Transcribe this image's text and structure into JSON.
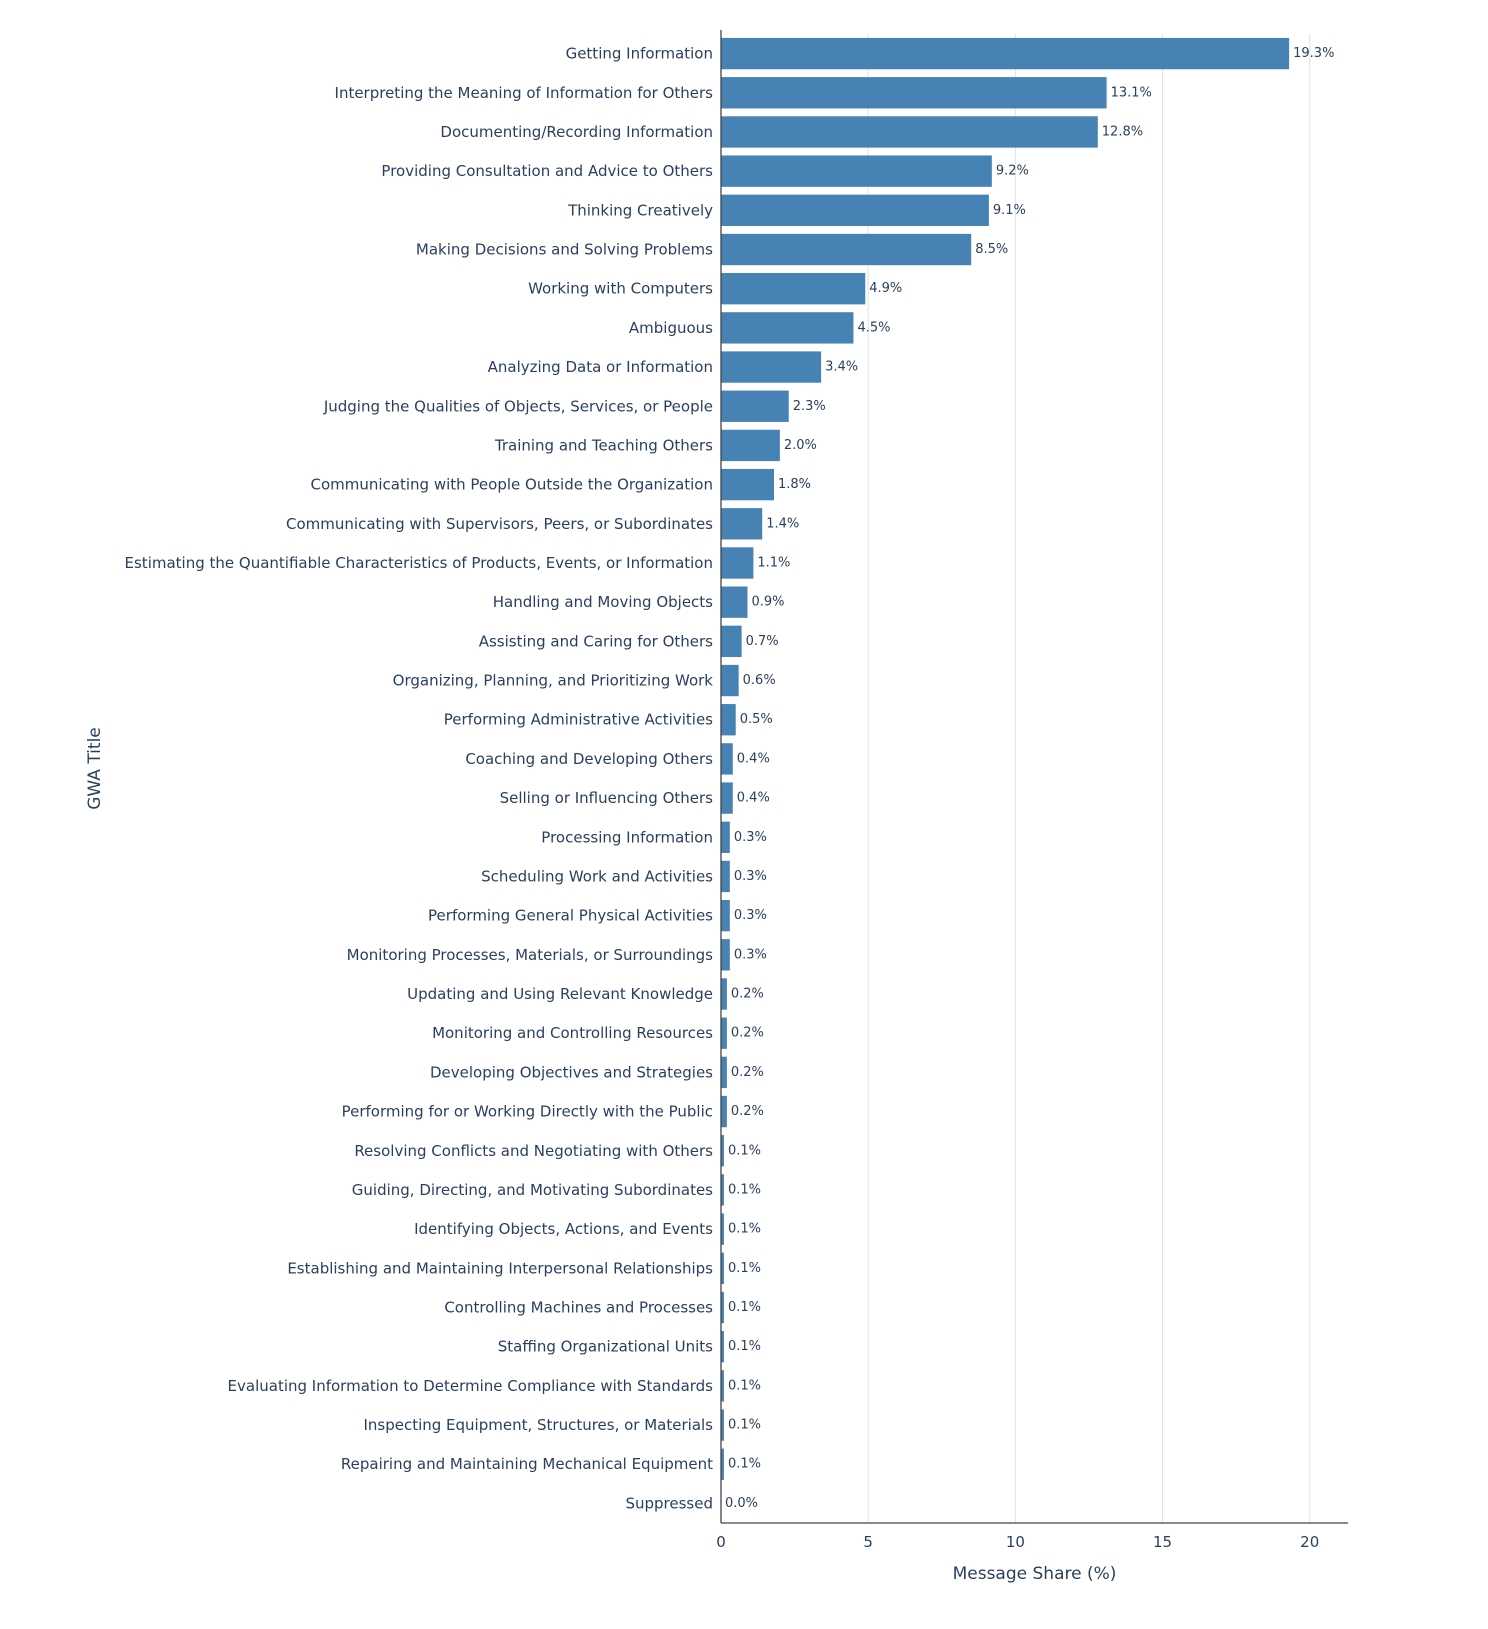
{
  "chart_data": {
    "type": "bar",
    "orientation": "horizontal",
    "categories": [
      "Getting Information",
      "Interpreting the Meaning of Information for Others",
      "Documenting/Recording Information",
      "Providing Consultation and Advice to Others",
      "Thinking Creatively",
      "Making Decisions and Solving Problems",
      "Working with Computers",
      "Ambiguous",
      "Analyzing Data or Information",
      "Judging the Qualities of Objects, Services, or People",
      "Training and Teaching Others",
      "Communicating with People Outside the Organization",
      "Communicating with Supervisors, Peers, or Subordinates",
      "Estimating the Quantifiable Characteristics of Products, Events, or Information",
      "Handling and Moving Objects",
      "Assisting and Caring for Others",
      "Organizing, Planning, and Prioritizing Work",
      "Performing Administrative Activities",
      "Coaching and Developing Others",
      "Selling or Influencing Others",
      "Processing Information",
      "Scheduling Work and Activities",
      "Performing General Physical Activities",
      "Monitoring Processes, Materials, or Surroundings",
      "Updating and Using Relevant Knowledge",
      "Monitoring and Controlling Resources",
      "Developing Objectives and Strategies",
      "Performing for or Working Directly with the Public",
      "Resolving Conflicts and Negotiating with Others",
      "Guiding, Directing, and Motivating Subordinates",
      "Identifying Objects, Actions, and Events",
      "Establishing and Maintaining Interpersonal Relationships",
      "Controlling Machines and Processes",
      "Staffing Organizational Units",
      "Evaluating Information to Determine Compliance with Standards",
      "Inspecting Equipment, Structures, or Materials",
      "Repairing and Maintaining Mechanical Equipment",
      "Suppressed"
    ],
    "values": [
      19.3,
      13.1,
      12.8,
      9.2,
      9.1,
      8.5,
      4.9,
      4.5,
      3.4,
      2.3,
      2.0,
      1.8,
      1.4,
      1.1,
      0.9,
      0.7,
      0.6,
      0.5,
      0.4,
      0.4,
      0.3,
      0.3,
      0.3,
      0.3,
      0.2,
      0.2,
      0.2,
      0.2,
      0.1,
      0.1,
      0.1,
      0.1,
      0.1,
      0.1,
      0.1,
      0.1,
      0.1,
      0.0
    ],
    "data_labels": [
      "19.3%",
      "13.1%",
      "12.8%",
      "9.2%",
      "9.1%",
      "8.5%",
      "4.9%",
      "4.5%",
      "3.4%",
      "2.3%",
      "2.0%",
      "1.8%",
      "1.4%",
      "1.1%",
      "0.9%",
      "0.7%",
      "0.6%",
      "0.5%",
      "0.4%",
      "0.4%",
      "0.3%",
      "0.3%",
      "0.3%",
      "0.3%",
      "0.2%",
      "0.2%",
      "0.2%",
      "0.2%",
      "0.1%",
      "0.1%",
      "0.1%",
      "0.1%",
      "0.1%",
      "0.1%",
      "0.1%",
      "0.1%",
      "0.1%",
      "0.0%"
    ],
    "xlabel": "Message Share (%)",
    "ylabel": "GWA Title",
    "xlim": [
      0,
      21.3
    ],
    "xticks": [
      0,
      5,
      10,
      15,
      20
    ],
    "xtick_labels": [
      "0",
      "5",
      "10",
      "15",
      "20"
    ],
    "grid": "vertical",
    "bar_color": "#4682b4"
  }
}
